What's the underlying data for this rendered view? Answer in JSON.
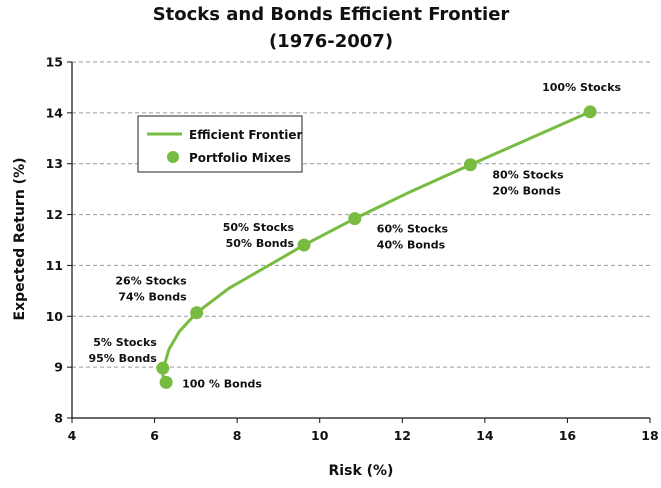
{
  "colors": {
    "series": "#77bb41",
    "grid": "#9a9a9a",
    "axis": "#111111"
  },
  "chart_data": {
    "type": "scatter",
    "title": "Stocks and Bonds Efficient Frontier",
    "subtitle": "(1976-2007)",
    "xlabel": "Risk (%)",
    "ylabel": "Expected Return (%)",
    "xlim": [
      4,
      18
    ],
    "ylim": [
      8,
      15
    ],
    "xticks": [
      4,
      6,
      8,
      10,
      12,
      14,
      16,
      18
    ],
    "yticks": [
      8,
      9,
      10,
      11,
      12,
      13,
      14,
      15
    ],
    "grid": "horizontal dashed",
    "legend_position": "upper-left",
    "series": [
      {
        "name": "Efficient Frontier",
        "kind": "line",
        "x": [
          6.25,
          6.2,
          6.22,
          6.35,
          6.6,
          7.02,
          7.8,
          8.7,
          9.62,
          10.85,
          12.2,
          13.65,
          15.1,
          16.55
        ],
        "y": [
          8.72,
          8.85,
          9.0,
          9.35,
          9.7,
          10.07,
          10.55,
          10.97,
          11.4,
          11.92,
          12.45,
          12.98,
          13.5,
          14.02
        ]
      },
      {
        "name": "Portfolio Mixes",
        "kind": "points",
        "points": [
          {
            "x": 6.28,
            "y": 8.7,
            "label": [
              "100 % Bonds"
            ]
          },
          {
            "x": 6.2,
            "y": 8.98,
            "label": [
              "5% Stocks",
              "95% Bonds"
            ]
          },
          {
            "x": 7.02,
            "y": 10.07,
            "label": [
              "26% Stocks",
              "74% Bonds"
            ]
          },
          {
            "x": 9.62,
            "y": 11.4,
            "label": [
              "50% Stocks",
              "50% Bonds"
            ]
          },
          {
            "x": 10.85,
            "y": 11.92,
            "label": [
              "60% Stocks",
              "40% Bonds"
            ]
          },
          {
            "x": 13.65,
            "y": 12.98,
            "label": [
              "80% Stocks",
              "20% Bonds"
            ]
          },
          {
            "x": 16.55,
            "y": 14.02,
            "label": [
              "100% Stocks"
            ]
          }
        ]
      }
    ]
  }
}
